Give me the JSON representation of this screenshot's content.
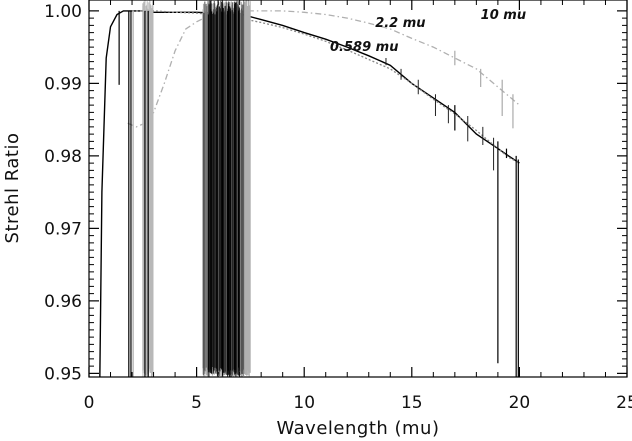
{
  "chart_data": {
    "type": "line",
    "title": "",
    "xlabel": "Wavelength (mu)",
    "ylabel": "Strehl Ratio",
    "xlim": [
      0,
      25
    ],
    "ylim": [
      0.9495,
      1.0015
    ],
    "xticks": [
      0,
      5,
      10,
      15,
      20,
      25
    ],
    "xtick_labels": [
      "0",
      "5",
      "10",
      "15",
      "20",
      "25"
    ],
    "yticks": [
      0.95,
      0.96,
      0.97,
      0.98,
      0.99,
      1.0
    ],
    "ytick_labels": [
      "0.95",
      "0.96",
      "0.97",
      "0.98",
      "0.99",
      "1.00"
    ],
    "grid": false,
    "legend": "none",
    "annotations": [
      {
        "text": "2.2 mu",
        "x": 13.3,
        "y": 0.9978
      },
      {
        "text": "10 mu",
        "x": 18.2,
        "y": 0.9989
      },
      {
        "text": "0.589 mu",
        "x": 11.2,
        "y": 0.9945
      }
    ],
    "series": [
      {
        "color": "#000000",
        "style": "solid",
        "x": [
          0.5,
          0.6,
          0.8,
          1.0,
          1.3,
          1.6,
          2.0,
          2.5,
          3.0,
          4.0,
          5.0,
          6.0,
          7.0,
          8.0,
          9.0,
          10.0,
          11.0,
          12.0,
          13.0,
          14.0,
          15.0,
          16.0,
          17.0,
          18.0,
          19.0,
          19.5,
          20.0
        ],
        "y": [
          0.949,
          0.975,
          0.9935,
          0.9978,
          0.9995,
          1.0,
          1.0,
          1.0,
          0.9998,
          0.9998,
          0.9998,
          0.9997,
          0.9996,
          0.9988,
          0.998,
          0.997,
          0.9961,
          0.995,
          0.9938,
          0.9925,
          0.99,
          0.988,
          0.986,
          0.983,
          0.981,
          0.98,
          0.979
        ]
      },
      {
        "color": "#888888",
        "style": "dotted",
        "x": [
          2.0,
          2.5,
          3.0,
          4.0,
          5.0,
          6.0,
          7.0,
          8.0,
          9.0,
          10.0,
          11.0,
          12.0,
          13.0,
          14.0,
          15.0,
          16.0,
          17.0,
          18.0,
          19.0,
          19.5,
          20.0
        ],
        "y": [
          1.0,
          1.0,
          1.0,
          0.9998,
          0.9997,
          0.9994,
          0.999,
          0.9984,
          0.9977,
          0.9968,
          0.9958,
          0.9946,
          0.9933,
          0.992,
          0.99,
          0.9878,
          0.9858,
          0.9835,
          0.981,
          0.9798,
          0.979
        ]
      },
      {
        "color": "#b0b0b0",
        "style": "dash-dot",
        "x": [
          1.8,
          2.2,
          2.6,
          3.0,
          3.5,
          4.0,
          4.5,
          5.0,
          6.0,
          7.0,
          8.0,
          9.0,
          10.0,
          11.0,
          12.0,
          13.0,
          14.0,
          15.0,
          16.0,
          17.0,
          18.0,
          19.0,
          20.0
        ],
        "y": [
          0.9845,
          0.984,
          0.9845,
          0.986,
          0.99,
          0.9945,
          0.9975,
          0.9985,
          1.0,
          1.0,
          1.0,
          1.0,
          0.9998,
          0.9995,
          0.999,
          0.9983,
          0.9975,
          0.9962,
          0.995,
          0.9935,
          0.992,
          0.9895,
          0.987
        ]
      }
    ]
  }
}
